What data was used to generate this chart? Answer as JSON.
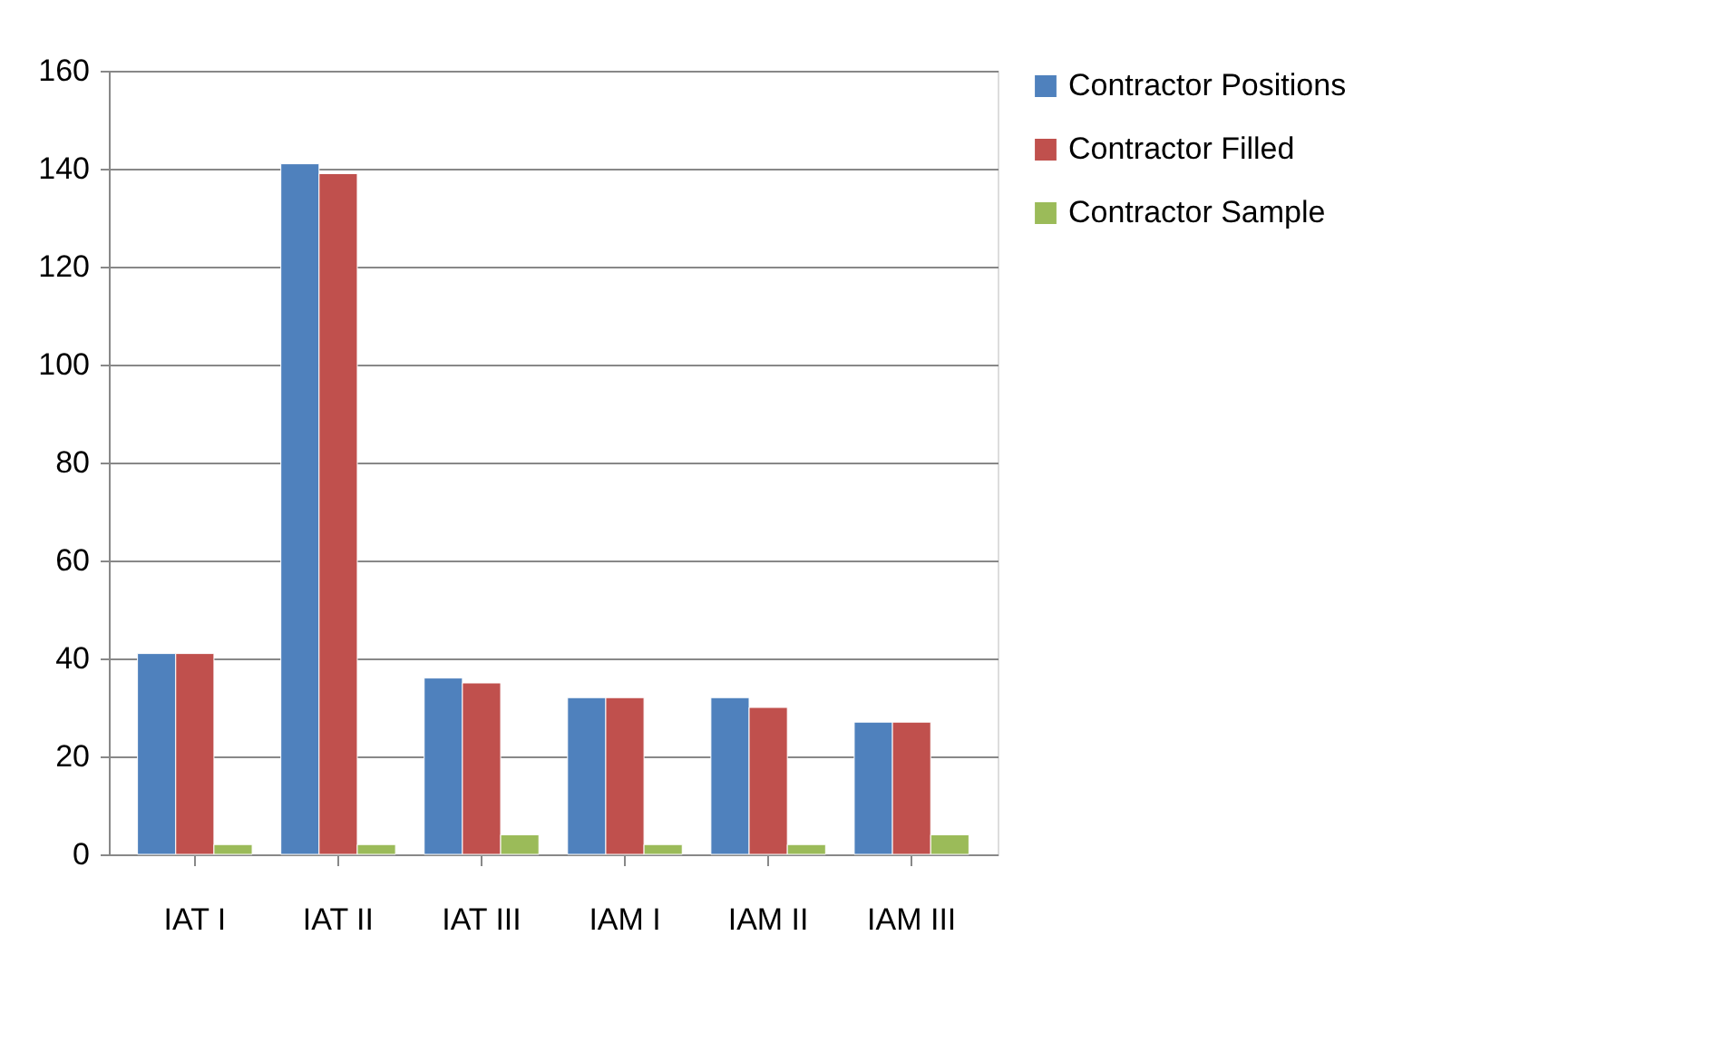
{
  "chart_data": {
    "type": "bar",
    "categories": [
      "IAT I",
      "IAT II",
      "IAT III",
      "IAM I",
      "IAM II",
      "IAM III"
    ],
    "series": [
      {
        "name": "Contractor Positions",
        "color": "#4f81bd",
        "values": [
          41,
          141,
          36,
          32,
          32,
          27
        ]
      },
      {
        "name": "Contractor Filled",
        "color": "#c0504d",
        "values": [
          41,
          139,
          35,
          32,
          30,
          27
        ]
      },
      {
        "name": "Contractor Sample",
        "color": "#9bbb59",
        "values": [
          2,
          2,
          4,
          2,
          2,
          4
        ]
      }
    ],
    "ylim": [
      0,
      160
    ],
    "yticks": [
      0,
      20,
      40,
      60,
      80,
      100,
      120,
      140,
      160
    ],
    "grid": "y",
    "legend": "right"
  }
}
